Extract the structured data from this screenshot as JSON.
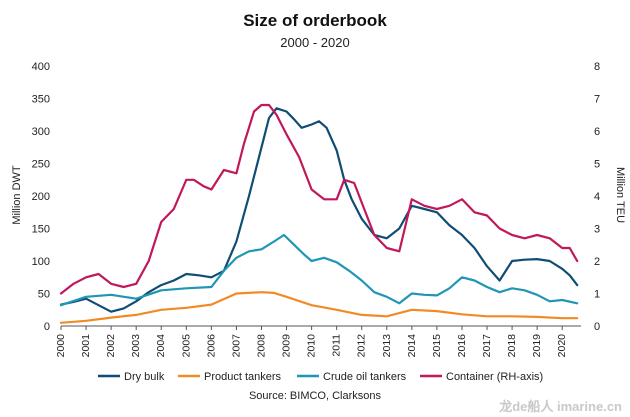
{
  "chart_data": {
    "type": "line",
    "title": "Size of orderbook",
    "subtitle": "2000 - 2020",
    "ylabel": "Million DWT",
    "y2label": "Million TEU",
    "ylim": [
      0,
      400
    ],
    "y2lim": [
      0,
      8
    ],
    "yticks": [
      "0",
      "50",
      "100",
      "150",
      "200",
      "250",
      "300",
      "350",
      "400"
    ],
    "y2ticks": [
      "0",
      "1",
      "2",
      "3",
      "4",
      "5",
      "6",
      "7",
      "8"
    ],
    "xlim": [
      2000,
      2020.75
    ],
    "xticks": [
      "2000",
      "2001",
      "2002",
      "2003",
      "2004",
      "2005",
      "2006",
      "2007",
      "2008",
      "2009",
      "2010",
      "2011",
      "2012",
      "2013",
      "2014",
      "2015",
      "2016",
      "2017",
      "2018",
      "2019",
      "2020"
    ],
    "grid": false,
    "legend_position": "bottom",
    "series": [
      {
        "name": "Dry bulk",
        "axis": "left",
        "color": "#0f4d73",
        "x": [
          2000,
          2000.5,
          2001,
          2001.5,
          2002,
          2002.5,
          2003,
          2003.5,
          2004,
          2004.5,
          2005,
          2005.5,
          2006,
          2006.5,
          2007,
          2007.5,
          2008,
          2008.3,
          2008.6,
          2009,
          2009.3,
          2009.6,
          2010,
          2010.3,
          2010.6,
          2011,
          2011.3,
          2011.6,
          2012,
          2012.5,
          2013,
          2013.5,
          2014,
          2014.5,
          2015,
          2015.5,
          2016,
          2016.5,
          2017,
          2017.5,
          2018,
          2018.5,
          2019,
          2019.5,
          2020,
          2020.3,
          2020.6
        ],
        "y": [
          33,
          37,
          42,
          32,
          22,
          27,
          38,
          52,
          63,
          70,
          80,
          78,
          75,
          85,
          130,
          200,
          275,
          320,
          335,
          330,
          318,
          305,
          310,
          315,
          305,
          270,
          225,
          195,
          165,
          140,
          135,
          150,
          185,
          180,
          175,
          155,
          140,
          120,
          92,
          70,
          100,
          102,
          103,
          100,
          88,
          78,
          63
        ]
      },
      {
        "name": "Product tankers",
        "axis": "left",
        "color": "#f28a25",
        "x": [
          2000,
          2001,
          2002,
          2003,
          2004,
          2005,
          2006,
          2007,
          2008,
          2008.5,
          2009,
          2010,
          2011,
          2012,
          2013,
          2014,
          2015,
          2016,
          2017,
          2018,
          2019,
          2020,
          2020.6
        ],
        "y": [
          5,
          8,
          13,
          17,
          25,
          28,
          33,
          50,
          52,
          51,
          45,
          32,
          25,
          17,
          15,
          25,
          23,
          18,
          15,
          15,
          14,
          12,
          12
        ]
      },
      {
        "name": "Crude oil tankers",
        "axis": "left",
        "color": "#1f96b5",
        "x": [
          2000,
          2001,
          2002,
          2003,
          2004,
          2005,
          2006,
          2006.5,
          2007,
          2007.5,
          2008,
          2008.5,
          2008.9,
          2009.3,
          2009.7,
          2010,
          2010.5,
          2011,
          2011.5,
          2012,
          2012.5,
          2013,
          2013.5,
          2014,
          2014.5,
          2015,
          2015.5,
          2016,
          2016.5,
          2017,
          2017.5,
          2018,
          2018.5,
          2019,
          2019.5,
          2020,
          2020.6
        ],
        "y": [
          32,
          45,
          48,
          42,
          55,
          58,
          60,
          85,
          105,
          115,
          118,
          130,
          140,
          125,
          110,
          100,
          105,
          98,
          85,
          70,
          52,
          45,
          35,
          50,
          48,
          47,
          58,
          75,
          70,
          60,
          52,
          58,
          55,
          48,
          38,
          40,
          35
        ]
      },
      {
        "name": "Container (RH-axis)",
        "axis": "right",
        "color": "#c1185b",
        "x": [
          2000,
          2000.5,
          2001,
          2001.5,
          2002,
          2002.5,
          2003,
          2003.5,
          2004,
          2004.5,
          2005,
          2005.3,
          2005.7,
          2006,
          2006.5,
          2007,
          2007.3,
          2007.7,
          2008,
          2008.3,
          2008.6,
          2009,
          2009.5,
          2010,
          2010.5,
          2011,
          2011.3,
          2011.7,
          2012,
          2012.5,
          2013,
          2013.5,
          2014,
          2014.5,
          2015,
          2015.5,
          2016,
          2016.5,
          2017,
          2017.5,
          2018,
          2018.5,
          2019,
          2019.5,
          2020,
          2020.3,
          2020.6
        ],
        "y": [
          1.0,
          1.3,
          1.5,
          1.6,
          1.3,
          1.2,
          1.3,
          2.0,
          3.2,
          3.6,
          4.5,
          4.5,
          4.3,
          4.2,
          4.8,
          4.7,
          5.6,
          6.6,
          6.8,
          6.8,
          6.5,
          5.9,
          5.2,
          4.2,
          3.9,
          3.9,
          4.5,
          4.4,
          3.8,
          2.8,
          2.4,
          2.3,
          3.9,
          3.7,
          3.6,
          3.7,
          3.9,
          3.5,
          3.4,
          3.0,
          2.8,
          2.7,
          2.8,
          2.7,
          2.4,
          2.4,
          2.0
        ]
      }
    ]
  },
  "source": "Source: BIMCO, Clarksons",
  "watermark": "龙de船人 imarine.cn"
}
